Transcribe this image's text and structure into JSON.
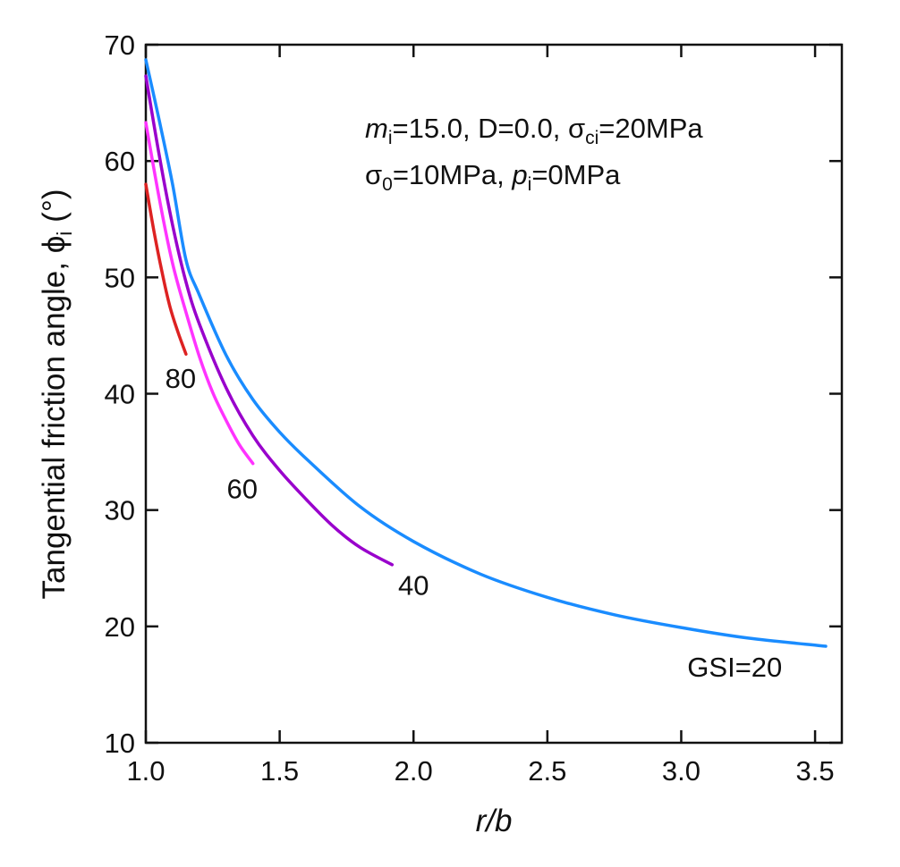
{
  "chart_data": {
    "type": "line",
    "xlabel": "r/b",
    "ylabel": "Tangential friction angle, ϕi (°)",
    "ylabel_main": "Tangential friction angle, ",
    "ylabel_symbol": "ϕ",
    "ylabel_sub": "i",
    "ylabel_unit": " (°)",
    "xlim": [
      1.0,
      3.6
    ],
    "ylim": [
      10,
      70
    ],
    "xticks": [
      1.0,
      1.5,
      2.0,
      2.5,
      3.0,
      3.5
    ],
    "xtick_labels": [
      "1.0",
      "1.5",
      "2.0",
      "2.5",
      "3.0",
      "3.5"
    ],
    "yticks": [
      10,
      20,
      30,
      40,
      50,
      60,
      70
    ],
    "ytick_labels": [
      "10",
      "20",
      "30",
      "40",
      "50",
      "60",
      "70"
    ],
    "grid": false,
    "annotation": {
      "line1": {
        "m": "m",
        "m_sub": "i",
        "rest1": "=15.0, D=0.0, ",
        "sigma": "σ",
        "sigma_sub": "ci",
        "rest2": "=20MPa"
      },
      "line2": {
        "sigma": "σ",
        "sigma_sub": "0",
        "rest1": "=10MPa, ",
        "p": "p",
        "p_sub": "i",
        "rest2": "=0MPa"
      }
    },
    "series": [
      {
        "name": "GSI=20",
        "label": "GSI=20",
        "color": "#1a8cff",
        "x": [
          1.0,
          1.05,
          1.1,
          1.15,
          1.2,
          1.3,
          1.4,
          1.5,
          1.6,
          1.8,
          2.0,
          2.25,
          2.5,
          2.75,
          3.0,
          3.25,
          3.54
        ],
        "y": [
          68.7,
          63.5,
          58.0,
          51.5,
          48.5,
          43.3,
          39.5,
          36.7,
          34.4,
          30.3,
          27.3,
          24.5,
          22.5,
          21.0,
          19.9,
          19.0,
          18.3
        ]
      },
      {
        "name": "GSI=40",
        "label": "40",
        "color": "#9900cc",
        "x": [
          1.0,
          1.05,
          1.1,
          1.15,
          1.2,
          1.3,
          1.4,
          1.5,
          1.6,
          1.7,
          1.8,
          1.92
        ],
        "y": [
          67.3,
          60.5,
          54.5,
          49.6,
          46.0,
          40.5,
          36.4,
          33.4,
          30.9,
          28.6,
          26.8,
          25.3
        ]
      },
      {
        "name": "GSI=60",
        "label": "60",
        "color": "#ff33ff",
        "x": [
          1.0,
          1.05,
          1.1,
          1.15,
          1.2,
          1.25,
          1.3,
          1.35,
          1.4
        ],
        "y": [
          63.3,
          56.8,
          51.2,
          47.0,
          43.2,
          40.1,
          37.7,
          35.6,
          34.0
        ]
      },
      {
        "name": "GSI=80",
        "label": "80",
        "color": "#dd2222",
        "x": [
          1.0,
          1.03,
          1.06,
          1.09,
          1.12,
          1.15
        ],
        "y": [
          58.0,
          54.0,
          50.5,
          47.5,
          45.3,
          43.4
        ]
      }
    ],
    "labels": [
      {
        "text": "80",
        "x": 1.13,
        "y": 40.5
      },
      {
        "text": "60",
        "x": 1.36,
        "y": 31.0
      },
      {
        "text": "40",
        "x": 2.0,
        "y": 22.7
      },
      {
        "text": "GSI=20",
        "x": 3.2,
        "y": 15.7
      }
    ]
  }
}
